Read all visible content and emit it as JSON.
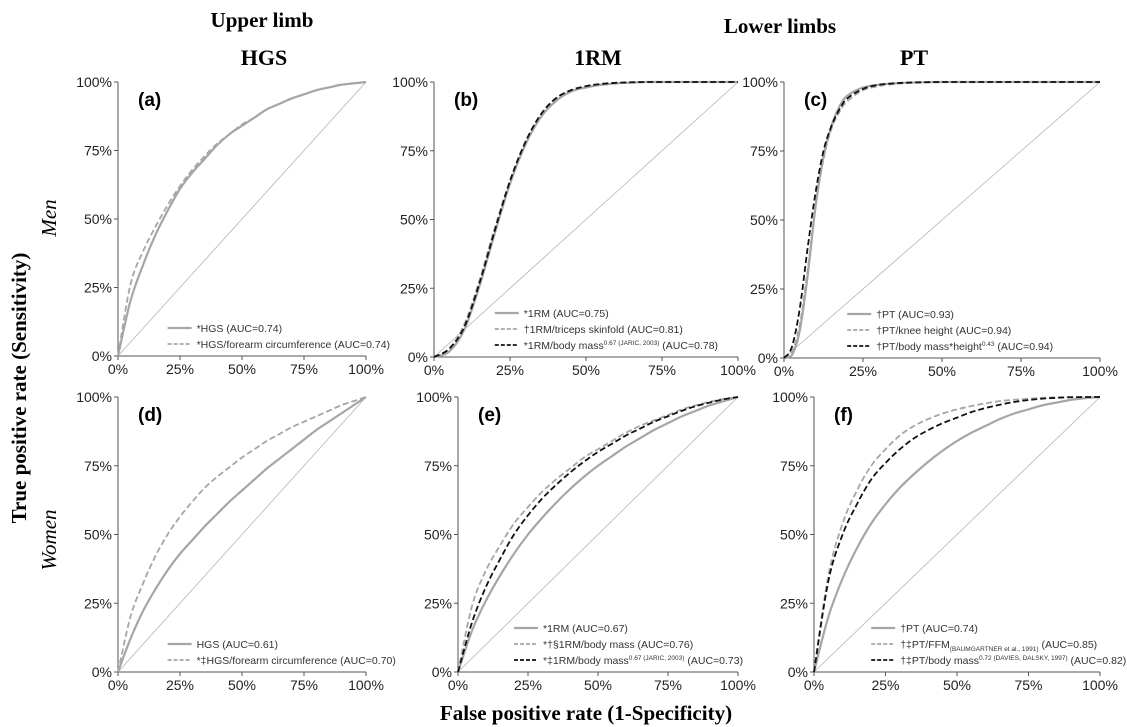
{
  "headers": {
    "upper_limb": "Upper limb",
    "lower_limbs": "Lower limbs",
    "hgs": "HGS",
    "one_rm": "1RM",
    "pt": "PT"
  },
  "axis_labels": {
    "y": "True positive rate (Sensitivity)",
    "x": "False positive rate (1-Specificity)"
  },
  "row_labels": {
    "men": "Men",
    "women": "Women"
  },
  "colors": {
    "solid_gray": "#a6a6a6",
    "dashed_gray": "#a6a6a6",
    "dashed_black": "#111111",
    "diagonal": "#b5b5b5"
  },
  "chart_data": [
    {
      "type": "line",
      "panel_label": "(a)",
      "xlabel": "",
      "ylabel": "",
      "xlim": [
        0,
        1
      ],
      "ylim": [
        0,
        1
      ],
      "x_ticks": [
        "0%",
        "25%",
        "50%",
        "75%",
        "100%"
      ],
      "y_ticks": [
        "0%",
        "25%",
        "50%",
        "75%",
        "100%"
      ],
      "grid": false,
      "legend_position": "bottom-center",
      "series": [
        {
          "legend": [
            {
              "t": "*HGS (AUC=0.74)"
            }
          ],
          "style": "solid-gray",
          "x": [
            0,
            0.05,
            0.1,
            0.15,
            0.2,
            0.25,
            0.3,
            0.35,
            0.4,
            0.45,
            0.5,
            0.55,
            0.6,
            0.65,
            0.7,
            0.75,
            0.8,
            0.85,
            0.9,
            0.95,
            1
          ],
          "y": [
            0,
            0.2,
            0.33,
            0.44,
            0.53,
            0.61,
            0.67,
            0.72,
            0.77,
            0.81,
            0.84,
            0.87,
            0.9,
            0.92,
            0.94,
            0.955,
            0.97,
            0.98,
            0.99,
            0.995,
            1
          ]
        },
        {
          "legend": [
            {
              "t": "*HGS/forearm circumference (AUC=0.74)"
            }
          ],
          "style": "dashed-gray",
          "x": [
            0,
            0.05,
            0.1,
            0.15,
            0.2,
            0.25,
            0.3,
            0.35,
            0.4,
            0.45,
            0.5,
            0.55,
            0.6,
            0.65,
            0.7,
            0.75,
            0.8,
            0.85,
            0.9,
            0.95,
            1
          ],
          "y": [
            0,
            0.26,
            0.38,
            0.47,
            0.55,
            0.62,
            0.68,
            0.73,
            0.775,
            0.81,
            0.845,
            0.87,
            0.9,
            0.92,
            0.94,
            0.955,
            0.97,
            0.98,
            0.99,
            0.995,
            1
          ]
        }
      ]
    },
    {
      "type": "line",
      "panel_label": "(b)",
      "xlabel": "",
      "ylabel": "",
      "xlim": [
        0,
        1
      ],
      "ylim": [
        0,
        1
      ],
      "x_ticks": [
        "0%",
        "25%",
        "50%",
        "75%",
        "100%"
      ],
      "y_ticks": [
        "0%",
        "25%",
        "50%",
        "75%",
        "100%"
      ],
      "grid": false,
      "legend_position": "bottom-center",
      "series": [
        {
          "legend": [
            {
              "t": "*1RM (AUC=0.75)"
            }
          ],
          "style": "solid-gray",
          "x": [
            0,
            0.05,
            0.1,
            0.15,
            0.2,
            0.25,
            0.3,
            0.35,
            0.4,
            0.45,
            0.5,
            0.55,
            0.6,
            0.65,
            0.7,
            0.75,
            0.8,
            0.85,
            0.9,
            0.95,
            1
          ],
          "y": [
            0,
            0.02,
            0.1,
            0.26,
            0.45,
            0.63,
            0.77,
            0.87,
            0.93,
            0.965,
            0.98,
            0.99,
            0.995,
            0.998,
            1,
            1,
            1,
            1,
            1,
            1,
            1
          ]
        },
        {
          "legend": [
            {
              "t": "†1RM/triceps skinfold (AUC=0.81)"
            }
          ],
          "style": "dashed-gray",
          "x": [
            0,
            0.05,
            0.1,
            0.15,
            0.2,
            0.25,
            0.3,
            0.35,
            0.4,
            0.45,
            0.5,
            0.55,
            0.6,
            0.65,
            0.7,
            0.75,
            0.8,
            0.85,
            0.9,
            0.95,
            1
          ],
          "y": [
            0,
            0.03,
            0.12,
            0.28,
            0.47,
            0.64,
            0.78,
            0.875,
            0.935,
            0.967,
            0.982,
            0.99,
            0.995,
            0.998,
            1,
            1,
            1,
            1,
            1,
            1,
            1
          ]
        },
        {
          "legend": [
            {
              "t": "*1RM/body mass"
            },
            {
              "t": "0.67 (JARIC, 2003)",
              "sub": "sup"
            },
            {
              "t": " (AUC=0.78)"
            }
          ],
          "style": "dashed-black",
          "x": [
            0,
            0.05,
            0.1,
            0.15,
            0.2,
            0.25,
            0.3,
            0.35,
            0.4,
            0.45,
            0.5,
            0.55,
            0.6,
            0.65,
            0.7,
            0.75,
            0.8,
            0.85,
            0.9,
            0.95,
            1
          ],
          "y": [
            0,
            0.03,
            0.11,
            0.27,
            0.46,
            0.64,
            0.78,
            0.88,
            0.94,
            0.97,
            0.985,
            0.993,
            0.997,
            0.999,
            1,
            1,
            1,
            1,
            1,
            1,
            1
          ]
        }
      ]
    },
    {
      "type": "line",
      "panel_label": "(c)",
      "xlabel": "",
      "ylabel": "",
      "xlim": [
        0,
        1
      ],
      "ylim": [
        0,
        1
      ],
      "x_ticks": [
        "0%",
        "25%",
        "50%",
        "75%",
        "100%"
      ],
      "y_ticks": [
        "0%",
        "25%",
        "50%",
        "75%",
        "100%"
      ],
      "grid": false,
      "legend_position": "bottom-center",
      "series": [
        {
          "legend": [
            {
              "t": "†PT (AUC=0.93)"
            }
          ],
          "style": "solid-gray",
          "x": [
            0,
            0.025,
            0.05,
            0.075,
            0.1,
            0.125,
            0.15,
            0.175,
            0.2,
            0.25,
            0.3,
            0.35,
            0.4,
            0.5,
            0.6,
            0.7,
            0.8,
            0.9,
            1
          ],
          "y": [
            0,
            0.01,
            0.1,
            0.3,
            0.55,
            0.73,
            0.84,
            0.91,
            0.95,
            0.98,
            0.99,
            0.995,
            0.998,
            1,
            1,
            1,
            1,
            1,
            1
          ]
        },
        {
          "legend": [
            {
              "t": "†PT/knee height (AUC=0.94)"
            }
          ],
          "style": "dashed-gray",
          "x": [
            0,
            0.025,
            0.05,
            0.075,
            0.1,
            0.125,
            0.15,
            0.175,
            0.2,
            0.25,
            0.3,
            0.35,
            0.4,
            0.5,
            0.6,
            0.7,
            0.8,
            0.9,
            1
          ],
          "y": [
            0,
            0.02,
            0.12,
            0.32,
            0.55,
            0.72,
            0.83,
            0.89,
            0.93,
            0.97,
            0.985,
            0.993,
            0.997,
            1,
            1,
            1,
            1,
            1,
            1
          ]
        },
        {
          "legend": [
            {
              "t": "†PT/body mass*height"
            },
            {
              "t": "0.43",
              "sub": "sup"
            },
            {
              "t": " (AUC=0.94)"
            }
          ],
          "style": "dashed-black",
          "x": [
            0,
            0.025,
            0.05,
            0.075,
            0.1,
            0.125,
            0.15,
            0.175,
            0.2,
            0.25,
            0.3,
            0.35,
            0.4,
            0.5,
            0.6,
            0.7,
            0.8,
            0.9,
            1
          ],
          "y": [
            0,
            0.04,
            0.18,
            0.4,
            0.6,
            0.75,
            0.84,
            0.9,
            0.94,
            0.975,
            0.99,
            0.995,
            0.998,
            1,
            1,
            1,
            1,
            1,
            1
          ]
        }
      ]
    },
    {
      "type": "line",
      "panel_label": "(d)",
      "xlabel": "",
      "ylabel": "",
      "xlim": [
        0,
        1
      ],
      "ylim": [
        0,
        1
      ],
      "x_ticks": [
        "0%",
        "25%",
        "50%",
        "75%",
        "100%"
      ],
      "y_ticks": [
        "0%",
        "25%",
        "50%",
        "75%",
        "100%"
      ],
      "grid": false,
      "legend_position": "bottom-center",
      "series": [
        {
          "legend": [
            {
              "t": "HGS (AUC=0.61)"
            }
          ],
          "style": "solid-gray",
          "x": [
            0,
            0.05,
            0.1,
            0.15,
            0.2,
            0.25,
            0.3,
            0.35,
            0.4,
            0.45,
            0.5,
            0.55,
            0.6,
            0.65,
            0.7,
            0.75,
            0.8,
            0.85,
            0.9,
            0.95,
            1
          ],
          "y": [
            0,
            0.12,
            0.22,
            0.3,
            0.37,
            0.43,
            0.48,
            0.53,
            0.575,
            0.62,
            0.66,
            0.7,
            0.74,
            0.775,
            0.81,
            0.845,
            0.88,
            0.91,
            0.94,
            0.97,
            1
          ]
        },
        {
          "legend": [
            {
              "t": "*‡HGS/forearm circumference (AUC=0.70)"
            }
          ],
          "style": "dashed-gray",
          "x": [
            0,
            0.05,
            0.1,
            0.15,
            0.2,
            0.25,
            0.3,
            0.35,
            0.4,
            0.45,
            0.5,
            0.55,
            0.6,
            0.65,
            0.7,
            0.75,
            0.8,
            0.85,
            0.9,
            0.95,
            1
          ],
          "y": [
            0,
            0.2,
            0.32,
            0.42,
            0.5,
            0.565,
            0.62,
            0.67,
            0.71,
            0.745,
            0.78,
            0.81,
            0.84,
            0.865,
            0.89,
            0.91,
            0.93,
            0.95,
            0.97,
            0.985,
            1
          ]
        }
      ]
    },
    {
      "type": "line",
      "panel_label": "(e)",
      "xlabel": "",
      "ylabel": "",
      "xlim": [
        0,
        1
      ],
      "ylim": [
        0,
        1
      ],
      "x_ticks": [
        "0%",
        "25%",
        "50%",
        "75%",
        "100%"
      ],
      "y_ticks": [
        "0%",
        "25%",
        "50%",
        "75%",
        "100%"
      ],
      "grid": false,
      "legend_position": "bottom-center",
      "series": [
        {
          "legend": [
            {
              "t": "*1RM (AUC=0.67)"
            }
          ],
          "style": "solid-gray",
          "x": [
            0,
            0.05,
            0.1,
            0.15,
            0.2,
            0.25,
            0.3,
            0.35,
            0.4,
            0.45,
            0.5,
            0.55,
            0.6,
            0.65,
            0.7,
            0.75,
            0.8,
            0.85,
            0.9,
            0.95,
            1
          ],
          "y": [
            0,
            0.15,
            0.26,
            0.35,
            0.43,
            0.5,
            0.56,
            0.615,
            0.665,
            0.71,
            0.75,
            0.785,
            0.82,
            0.85,
            0.88,
            0.905,
            0.93,
            0.95,
            0.97,
            0.985,
            1
          ]
        },
        {
          "legend": [
            {
              "t": "*†§1RM/body mass (AUC=0.76)"
            }
          ],
          "style": "dashed-gray",
          "x": [
            0,
            0.05,
            0.1,
            0.15,
            0.2,
            0.25,
            0.3,
            0.35,
            0.4,
            0.45,
            0.5,
            0.55,
            0.6,
            0.65,
            0.7,
            0.75,
            0.8,
            0.85,
            0.9,
            0.95,
            1
          ],
          "y": [
            0,
            0.24,
            0.37,
            0.46,
            0.54,
            0.6,
            0.655,
            0.7,
            0.74,
            0.78,
            0.81,
            0.84,
            0.87,
            0.895,
            0.915,
            0.935,
            0.955,
            0.97,
            0.983,
            0.993,
            1
          ]
        },
        {
          "legend": [
            {
              "t": "*‡1RM/body mass"
            },
            {
              "t": "0.67 (JARIC, 2003)",
              "sub": "sup"
            },
            {
              "t": " (AUC=0.73)"
            }
          ],
          "style": "dashed-black",
          "x": [
            0,
            0.05,
            0.1,
            0.15,
            0.2,
            0.25,
            0.3,
            0.35,
            0.4,
            0.45,
            0.5,
            0.55,
            0.6,
            0.65,
            0.7,
            0.75,
            0.8,
            0.85,
            0.9,
            0.95,
            1
          ],
          "y": [
            0,
            0.18,
            0.31,
            0.41,
            0.5,
            0.57,
            0.63,
            0.68,
            0.725,
            0.765,
            0.8,
            0.83,
            0.86,
            0.885,
            0.91,
            0.93,
            0.95,
            0.967,
            0.98,
            0.992,
            1
          ]
        }
      ]
    },
    {
      "type": "line",
      "panel_label": "(f)",
      "xlabel": "",
      "ylabel": "",
      "xlim": [
        0,
        1
      ],
      "ylim": [
        0,
        1
      ],
      "x_ticks": [
        "0%",
        "25%",
        "50%",
        "75%",
        "100%"
      ],
      "y_ticks": [
        "0%",
        "25%",
        "50%",
        "75%",
        "100%"
      ],
      "grid": false,
      "legend_position": "bottom-center",
      "series": [
        {
          "legend": [
            {
              "t": "†PT (AUC=0.74)"
            }
          ],
          "style": "solid-gray",
          "x": [
            0,
            0.05,
            0.1,
            0.15,
            0.2,
            0.25,
            0.3,
            0.35,
            0.4,
            0.45,
            0.5,
            0.55,
            0.6,
            0.65,
            0.7,
            0.75,
            0.8,
            0.85,
            0.9,
            0.95,
            1
          ],
          "y": [
            0,
            0.2,
            0.34,
            0.45,
            0.54,
            0.61,
            0.67,
            0.72,
            0.765,
            0.805,
            0.84,
            0.87,
            0.895,
            0.92,
            0.94,
            0.955,
            0.97,
            0.98,
            0.99,
            0.996,
            1
          ]
        },
        {
          "legend": [
            {
              "t": "†‡PT/FFM"
            },
            {
              "t": "(BAUMGARTNER et al., 1991)",
              "sub": "sub"
            },
            {
              "t": " (AUC=0.85)"
            }
          ],
          "style": "dashed-gray",
          "x": [
            0,
            0.05,
            0.1,
            0.15,
            0.2,
            0.25,
            0.3,
            0.35,
            0.4,
            0.45,
            0.5,
            0.55,
            0.6,
            0.65,
            0.7,
            0.75,
            0.8,
            0.85,
            0.9,
            0.95,
            1
          ],
          "y": [
            0,
            0.35,
            0.54,
            0.66,
            0.75,
            0.81,
            0.86,
            0.895,
            0.92,
            0.94,
            0.955,
            0.967,
            0.977,
            0.985,
            0.99,
            0.994,
            0.997,
            0.999,
            1,
            1,
            1
          ]
        },
        {
          "legend": [
            {
              "t": "†‡PT/body mass"
            },
            {
              "t": "0.72 (DAVIES, DALSKY, 1997)",
              "sub": "sup"
            },
            {
              "t": " (AUC=0.82)"
            }
          ],
          "style": "dashed-black",
          "x": [
            0,
            0.05,
            0.1,
            0.15,
            0.2,
            0.25,
            0.3,
            0.35,
            0.4,
            0.45,
            0.5,
            0.55,
            0.6,
            0.65,
            0.7,
            0.75,
            0.8,
            0.85,
            0.9,
            0.95,
            1
          ],
          "y": [
            0,
            0.33,
            0.5,
            0.61,
            0.7,
            0.76,
            0.81,
            0.85,
            0.88,
            0.905,
            0.925,
            0.945,
            0.96,
            0.972,
            0.982,
            0.989,
            0.994,
            0.997,
            0.999,
            1,
            1
          ]
        }
      ]
    }
  ]
}
